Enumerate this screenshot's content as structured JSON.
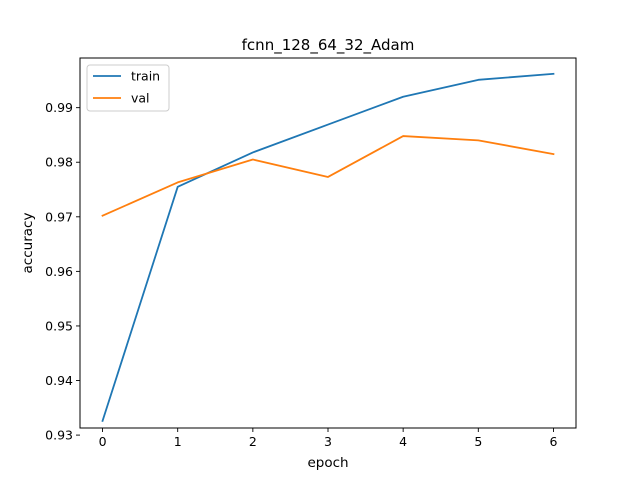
{
  "chart_data": {
    "type": "line",
    "title": "fcnn_128_64_32_Adam",
    "xlabel": "epoch",
    "ylabel": "accuracy",
    "x": [
      0,
      1,
      2,
      3,
      4,
      5,
      6
    ],
    "xlim": [
      -0.3,
      6.3
    ],
    "ylim": [
      0.9313,
      0.9991
    ],
    "xticks": [
      0,
      1,
      2,
      3,
      4,
      5,
      6
    ],
    "yticks": [
      0.93,
      0.94,
      0.95,
      0.96,
      0.97,
      0.98,
      0.99
    ],
    "ytick_labels": [
      "0.93",
      "0.94",
      "0.95",
      "0.96",
      "0.97",
      "0.98",
      "0.99"
    ],
    "grid": false,
    "legend_position": "upper-left",
    "series": [
      {
        "name": "train",
        "color": "#1f77b4",
        "values": [
          0.9326,
          0.9755,
          0.9818,
          0.9869,
          0.992,
          0.9951,
          0.9962
        ]
      },
      {
        "name": "val",
        "color": "#ff7f0e",
        "values": [
          0.9702,
          0.9763,
          0.9805,
          0.9773,
          0.9848,
          0.984,
          0.9815
        ]
      }
    ]
  }
}
